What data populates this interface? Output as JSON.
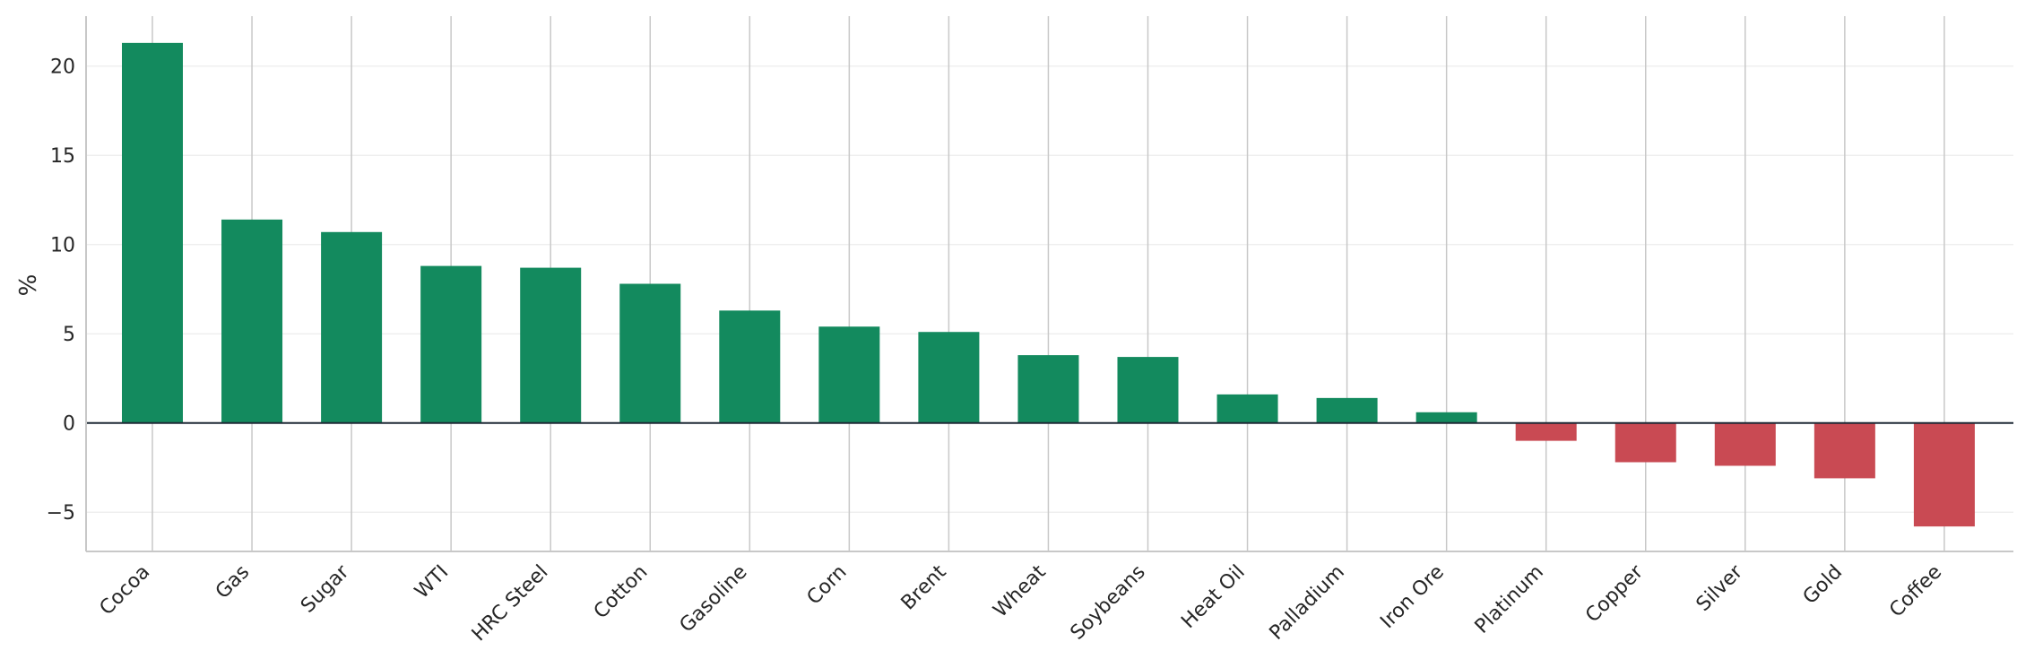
{
  "chart_data": {
    "type": "bar",
    "title": "",
    "xlabel": "",
    "ylabel": "%",
    "categories": [
      "Cocoa",
      "Gas",
      "Sugar",
      "WTI",
      "HRC Steel",
      "Cotton",
      "Gasoline",
      "Corn",
      "Brent",
      "Wheat",
      "Soybeans",
      "Heat Oil",
      "Palladium",
      "Iron Ore",
      "Platinum",
      "Copper",
      "Silver",
      "Gold",
      "Coffee"
    ],
    "values": [
      21.3,
      11.4,
      10.7,
      8.8,
      8.7,
      7.8,
      6.3,
      5.4,
      5.1,
      3.8,
      3.7,
      1.6,
      1.4,
      0.6,
      -1.0,
      -2.2,
      -2.4,
      -3.1,
      -5.8
    ],
    "ylim": [
      -7.2,
      22.8
    ],
    "yticks": [
      -5,
      0,
      5,
      10,
      15,
      20
    ],
    "ytick_labels": [
      "−5",
      "0",
      "5",
      "10",
      "15",
      "20"
    ],
    "grid": {
      "x": true,
      "y": true
    },
    "colors": {
      "positive": "#138a5e",
      "negative": "#c94a53",
      "zero_line": "#1f2a36",
      "grid_major": "#c8c8c8",
      "grid_minor": "#ececec",
      "axis": "#c8c8c8"
    }
  }
}
